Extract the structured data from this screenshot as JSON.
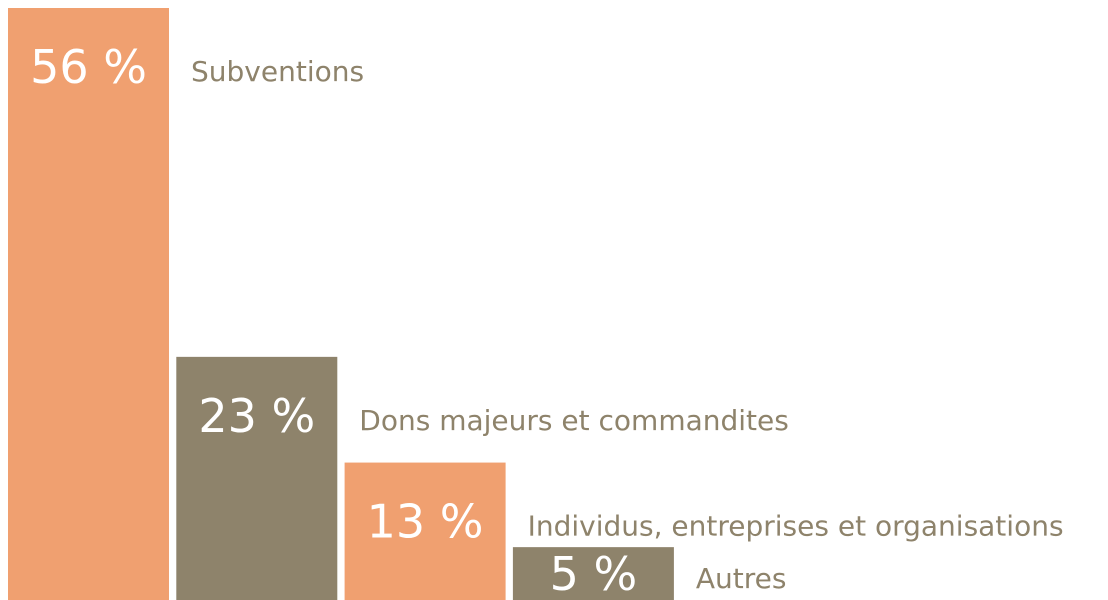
{
  "chart_data": {
    "type": "bar",
    "categories": [
      "Subventions",
      "Dons majeurs et commandites",
      "Individus, entreprises et organisations",
      "Autres"
    ],
    "values": [
      56,
      23,
      13,
      5
    ],
    "value_labels": [
      "56 %",
      "23 %",
      "13 %",
      "5 %"
    ],
    "colors": [
      "#f0a070",
      "#8e836b",
      "#f0a070",
      "#8e836b"
    ]
  }
}
